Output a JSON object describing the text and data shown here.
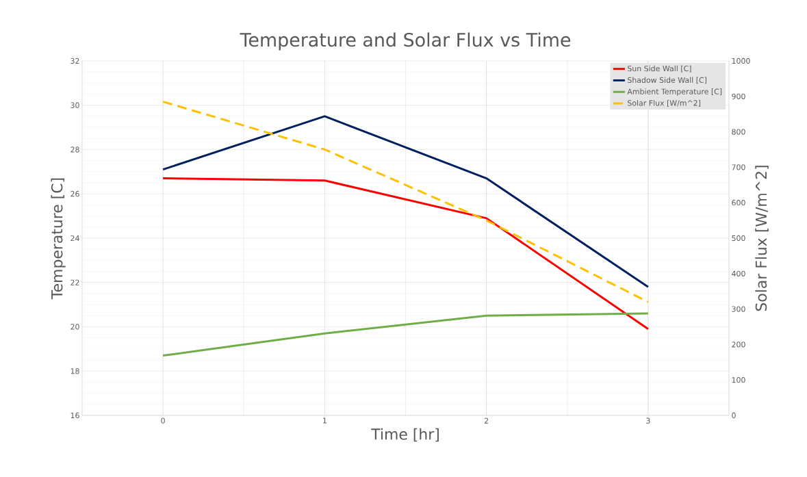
{
  "chart_data": {
    "type": "line",
    "title": "Temperature and Solar Flux vs Time",
    "xlabel": "Time [hr]",
    "ylabel": "Temperature  [C]",
    "y2label": "Solar Flux [W/m^2]",
    "x": [
      0,
      1,
      2,
      3
    ],
    "xlim": [
      -0.5,
      3.5
    ],
    "xticks": [
      0,
      1,
      2,
      3
    ],
    "ylim": [
      16,
      32
    ],
    "yticks": [
      16,
      18,
      20,
      22,
      24,
      26,
      28,
      30,
      32
    ],
    "y2lim": [
      0,
      1000
    ],
    "y2ticks": [
      0,
      100,
      200,
      300,
      400,
      500,
      600,
      700,
      800,
      900,
      1000
    ],
    "grid": true,
    "legend": "top right",
    "marker": "none",
    "series": [
      {
        "name": "Sun Side Wall [C]",
        "color": "#ff0000",
        "values": [
          26.7,
          26.6,
          24.9,
          19.9
        ]
      },
      {
        "name": "Shadow Side Wall [C]",
        "color": "#002060",
        "values": [
          27.1,
          29.5,
          26.7,
          21.8
        ]
      },
      {
        "name": "Ambient Temperature [C]",
        "color": "#70ad47",
        "values": [
          18.7,
          19.7,
          20.5,
          20.6
        ]
      },
      {
        "name": "Solar Flux [W/m^2]",
        "color": "#ffc000",
        "values": [
          885,
          750,
          550,
          320
        ],
        "axis": "y2",
        "line_style": "dashed"
      }
    ]
  }
}
